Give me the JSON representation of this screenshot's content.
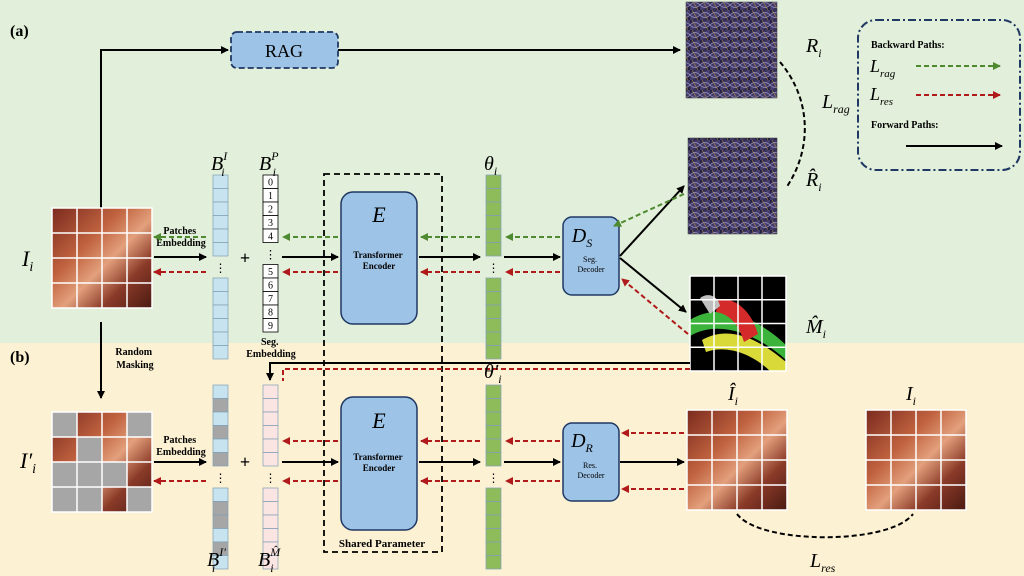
{
  "panels": {
    "a_label": "(a)",
    "b_label": "(b)"
  },
  "rag": {
    "label": "RAG"
  },
  "inputs": {
    "image_label_main": "I",
    "image_label_sub": "i",
    "masked_label_main": "I′",
    "masked_label_sub": "i",
    "random_masking_line1": "Random",
    "random_masking_line2": "Masking"
  },
  "embedding": {
    "patches_line1": "Patches",
    "patches_line2": "Embedding",
    "patches_b_line1": "Patches",
    "patches_b_line2": "Embedding",
    "plus": "+",
    "seg_line1": "Seg.",
    "seg_line2": "Embedding",
    "seg_indices": [
      "0",
      "1",
      "2",
      "3",
      "4",
      "5",
      "6",
      "7",
      "8",
      "9"
    ],
    "ellipsis": "⋮",
    "bi_main": "B",
    "bi_sub": "i",
    "bi_sup": "I",
    "bp_main": "B",
    "bp_sub": "i",
    "bp_sup": "P",
    "bib_main": "B",
    "bib_sub": "i",
    "bib_sup": "I′",
    "bm_main": "B",
    "bm_sub": "i",
    "bm_sup": "M̂"
  },
  "encoder": {
    "symbol": "E",
    "line1": "Transformer",
    "line2": "Encoder",
    "shared_label": "Shared Parameter"
  },
  "latent": {
    "theta_main": "θ",
    "theta_sub": "i",
    "theta_b_main": "θ′",
    "theta_b_sub": "i"
  },
  "decoders": {
    "seg_symbol": "D",
    "seg_sub": "S",
    "seg_line1": "Seg.",
    "seg_line2": "Decoder",
    "res_symbol": "D",
    "res_sub": "R",
    "res_line1": "Res.",
    "res_line2": "Decoder"
  },
  "outputs": {
    "r_main": "R",
    "r_sub": "i",
    "rhat_main": "R̂",
    "rhat_sub": "i",
    "mhat_main": "M̂",
    "mhat_sub": "i",
    "ihat_main": "Î",
    "ihat_sub": "i",
    "iorig_main": "I",
    "iorig_sub": "i"
  },
  "losses": {
    "lrag_main": "L",
    "lrag_sub": "rag",
    "lres_main": "L",
    "lres_sub": "res"
  },
  "legend": {
    "backward_title": "Backward Paths:",
    "lrag_main": "L",
    "lrag_sub": "rag",
    "lres_main": "L",
    "lres_sub": "res",
    "forward_title": "Forward Paths:"
  },
  "colors": {
    "panel_a_bg": "#e2efda",
    "panel_b_bg": "#fdf1d3",
    "block_blue": "#9dc3e6",
    "block_stroke": "#1f3864",
    "green_cell": "#8fbc5a",
    "light_blue_cell": "#c7e3ef",
    "grey_cell": "#a6a6a6",
    "pink_cell": "#fbe5e3",
    "green_arrow": "#4e8a2f",
    "red_arrow": "#b11a1a",
    "black": "#000000"
  }
}
